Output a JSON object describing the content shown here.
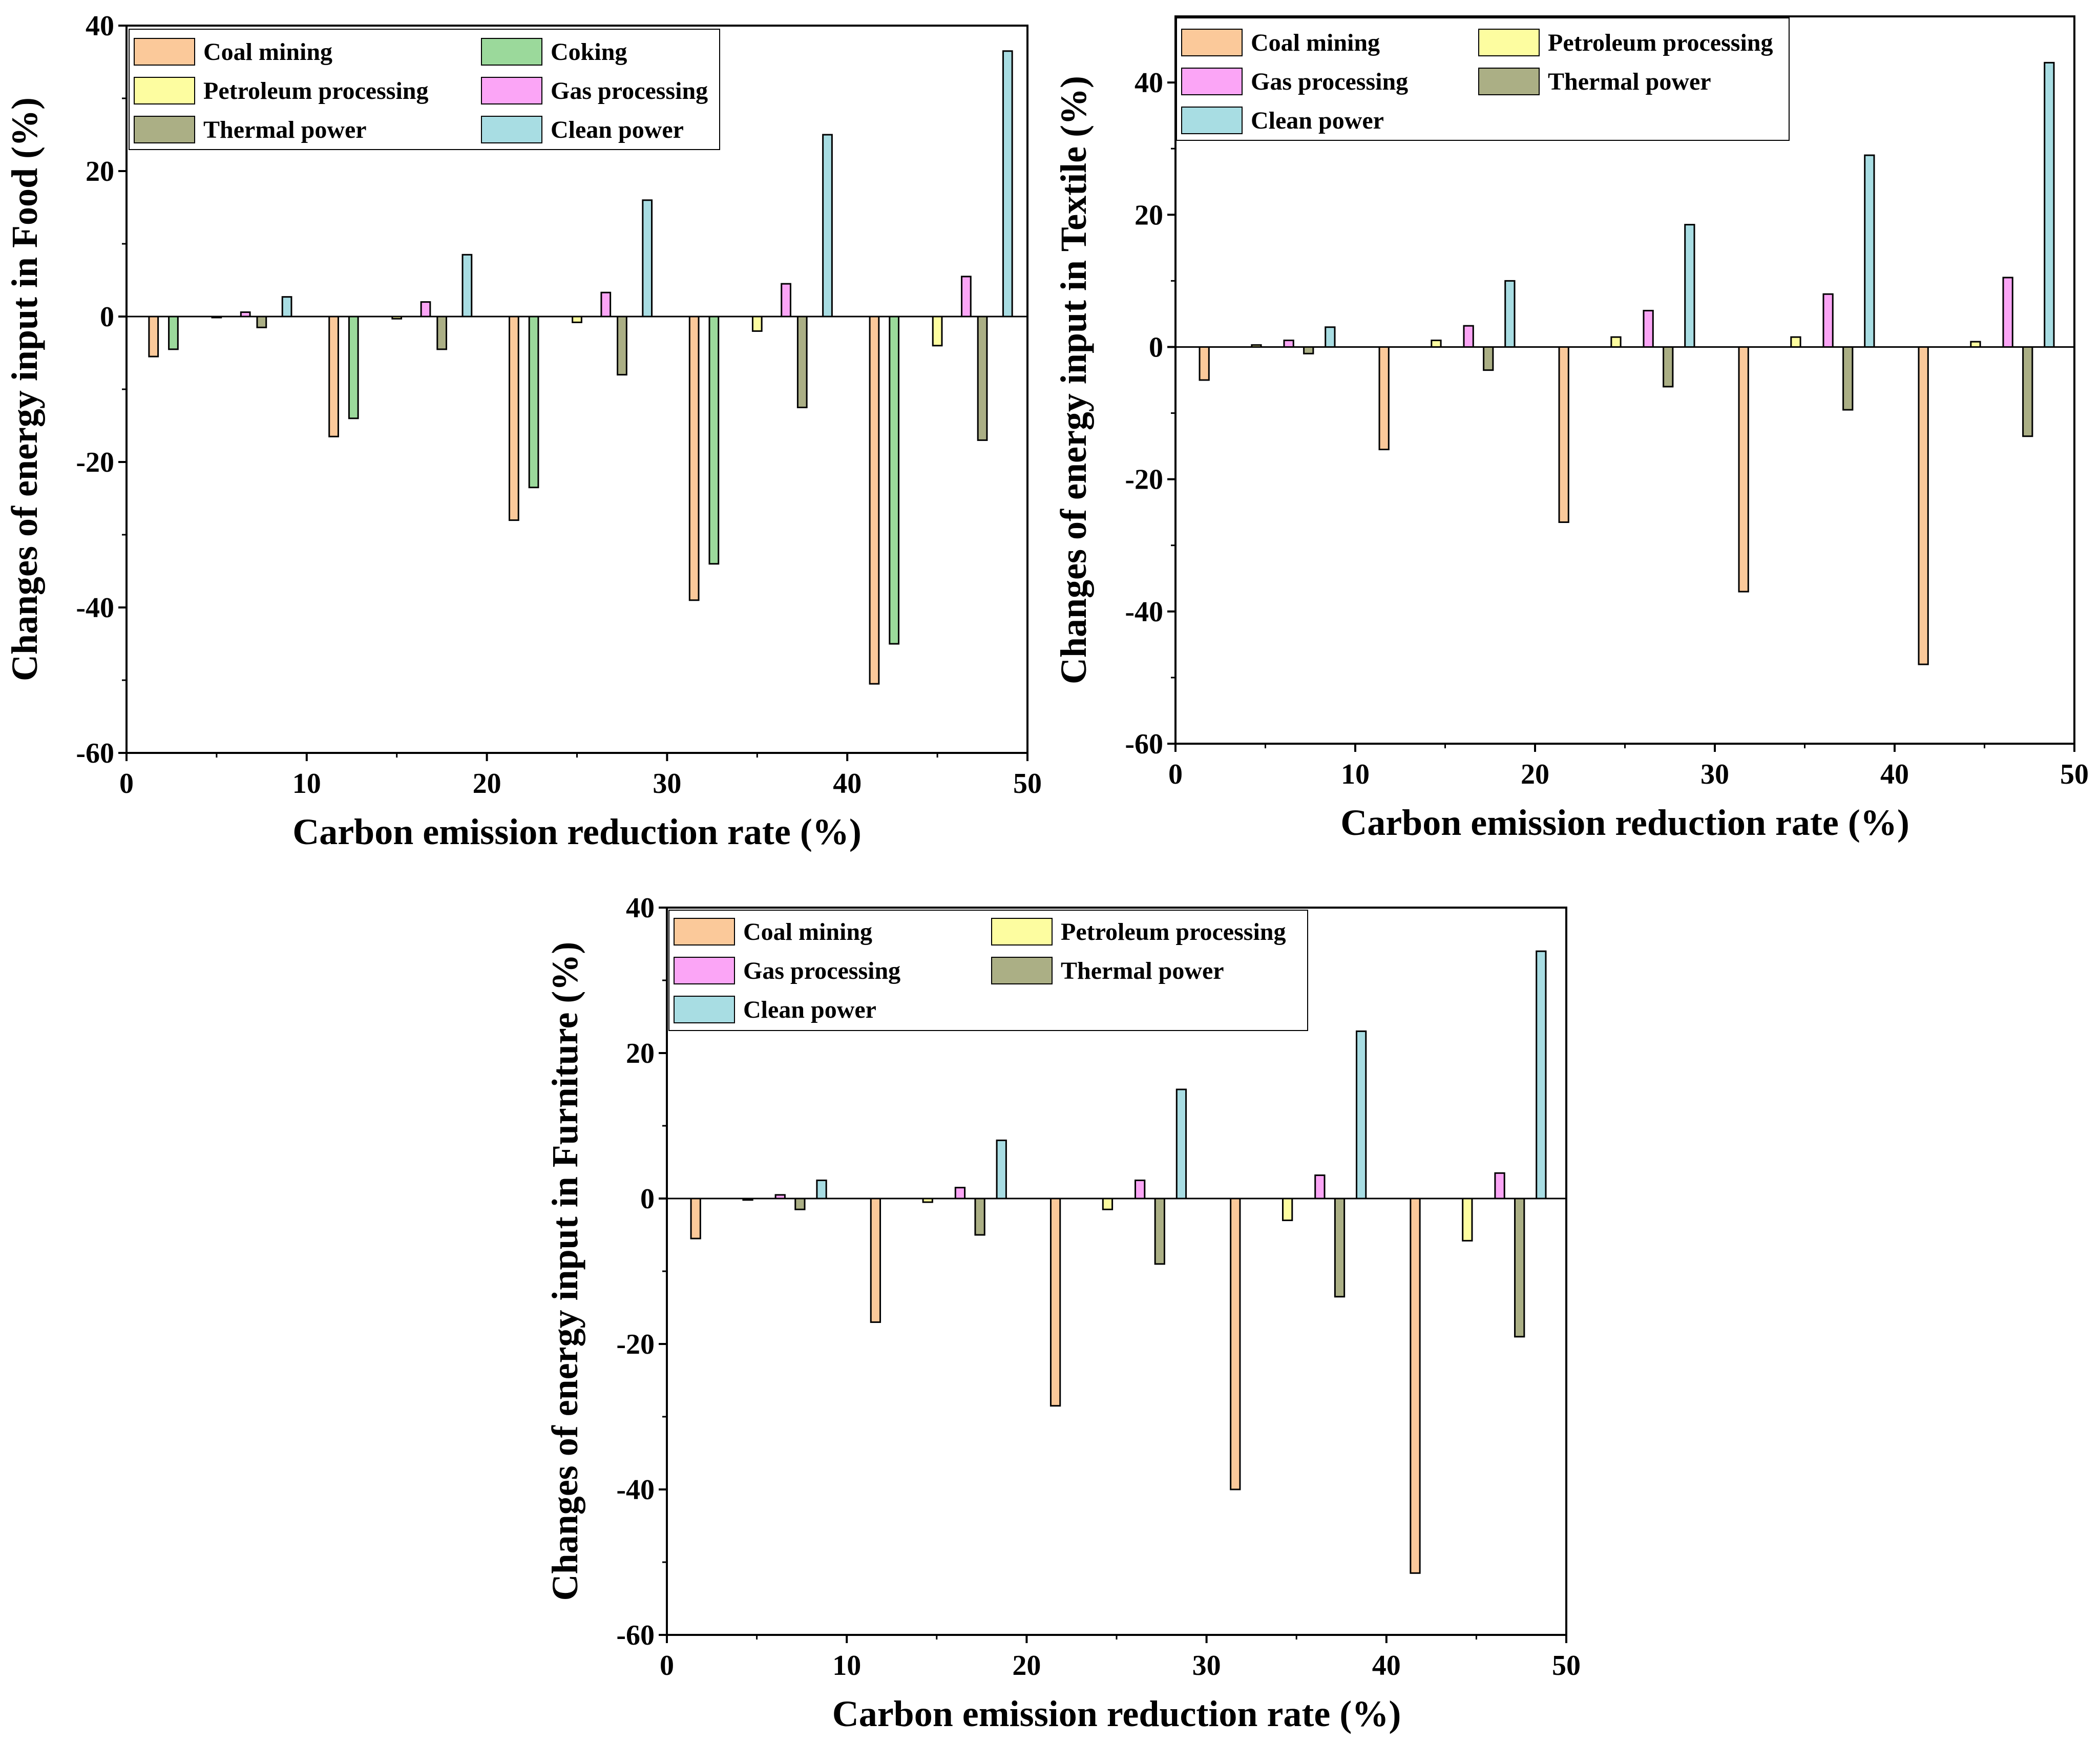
{
  "colors": {
    "Coal mining": "#FBC99A",
    "Coking": "#9BD99B",
    "Petroleum processing": "#FDFDA0",
    "Gas processing": "#FBA5F6",
    "Thermal power": "#ABAF85",
    "Clean power": "#A8DDE3"
  },
  "chart_data": [
    {
      "type": "bar",
      "id": "food",
      "title": "",
      "xlabel": "Carbon emission reduction rate (%)",
      "ylabel": "Changes of energy input in Food (%)",
      "xlim": [
        0,
        50
      ],
      "ylim": [
        -60,
        40
      ],
      "xticks": [
        0,
        10,
        20,
        30,
        40,
        50
      ],
      "yticks": [
        -60,
        -40,
        -20,
        0,
        20,
        40
      ],
      "categories": [
        10,
        20,
        30,
        40,
        50
      ],
      "series": [
        {
          "name": "Coal mining",
          "values": [
            -5.5,
            -16.5,
            -28,
            -39,
            -50.5
          ]
        },
        {
          "name": "Coking",
          "values": [
            -4.5,
            -14,
            -23.5,
            -34,
            -45
          ]
        },
        {
          "name": "Petroleum processing",
          "values": [
            0,
            -0.3,
            -0.8,
            -2,
            -4
          ]
        },
        {
          "name": "Gas processing",
          "values": [
            0.6,
            2,
            3.3,
            4.5,
            5.5
          ]
        },
        {
          "name": "Thermal power",
          "values": [
            -1.5,
            -4.5,
            -8,
            -12.5,
            -17
          ]
        },
        {
          "name": "Clean power",
          "values": [
            2.7,
            8.5,
            16,
            25,
            36.5
          ]
        }
      ],
      "legend": {
        "position": "top-left",
        "columns": 2,
        "entries": [
          "Coal mining",
          "Coking",
          "Petroleum processing",
          "Gas processing",
          "Thermal power",
          "Clean power"
        ]
      }
    },
    {
      "type": "bar",
      "id": "textile",
      "title": "",
      "xlabel": "Carbon emission reduction rate (%)",
      "ylabel": "Changes of energy input in Textile (%)",
      "xlim": [
        0,
        50
      ],
      "ylim": [
        -60,
        50
      ],
      "xticks": [
        0,
        10,
        20,
        30,
        40,
        50
      ],
      "yticks": [
        -60,
        -40,
        -20,
        0,
        20,
        40
      ],
      "categories": [
        10,
        20,
        30,
        40,
        50
      ],
      "series": [
        {
          "name": "Coal mining",
          "values": [
            -5,
            -15.5,
            -26.5,
            -37,
            -48
          ]
        },
        {
          "name": "Petroleum processing",
          "values": [
            0.3,
            1,
            1.5,
            1.5,
            0.8
          ]
        },
        {
          "name": "Gas processing",
          "values": [
            1,
            3.2,
            5.5,
            8,
            10.5
          ]
        },
        {
          "name": "Thermal power",
          "values": [
            -1,
            -3.5,
            -6,
            -9.5,
            -13.5
          ]
        },
        {
          "name": "Clean power",
          "values": [
            3,
            10,
            18.5,
            29,
            43
          ]
        }
      ],
      "legend": {
        "position": "top-left",
        "columns": 2,
        "entries": [
          "Coal mining",
          "Petroleum processing",
          "Gas processing",
          "Thermal power",
          "Clean power"
        ]
      }
    },
    {
      "type": "bar",
      "id": "furniture",
      "title": "",
      "xlabel": "Carbon emission reduction rate (%)",
      "ylabel": "Changes of energy input in Furniture (%)",
      "xlim": [
        0,
        50
      ],
      "ylim": [
        -60,
        40
      ],
      "xticks": [
        0,
        10,
        20,
        30,
        40,
        50
      ],
      "yticks": [
        -60,
        -40,
        -20,
        0,
        20,
        40
      ],
      "categories": [
        10,
        20,
        30,
        40,
        50
      ],
      "series": [
        {
          "name": "Coal mining",
          "values": [
            -5.5,
            -17,
            -28.5,
            -40,
            -51.5
          ]
        },
        {
          "name": "Petroleum processing",
          "values": [
            -0.2,
            -0.5,
            -1.5,
            -3,
            -5.8
          ]
        },
        {
          "name": "Gas processing",
          "values": [
            0.5,
            1.5,
            2.5,
            3.2,
            3.5
          ]
        },
        {
          "name": "Thermal power",
          "values": [
            -1.5,
            -5,
            -9,
            -13.5,
            -19
          ]
        },
        {
          "name": "Clean power",
          "values": [
            2.5,
            8,
            15,
            23,
            34
          ]
        }
      ],
      "legend": {
        "position": "top-left",
        "columns": 2,
        "entries": [
          "Coal mining",
          "Petroleum processing",
          "Gas processing",
          "Thermal power",
          "Clean power"
        ]
      }
    }
  ]
}
